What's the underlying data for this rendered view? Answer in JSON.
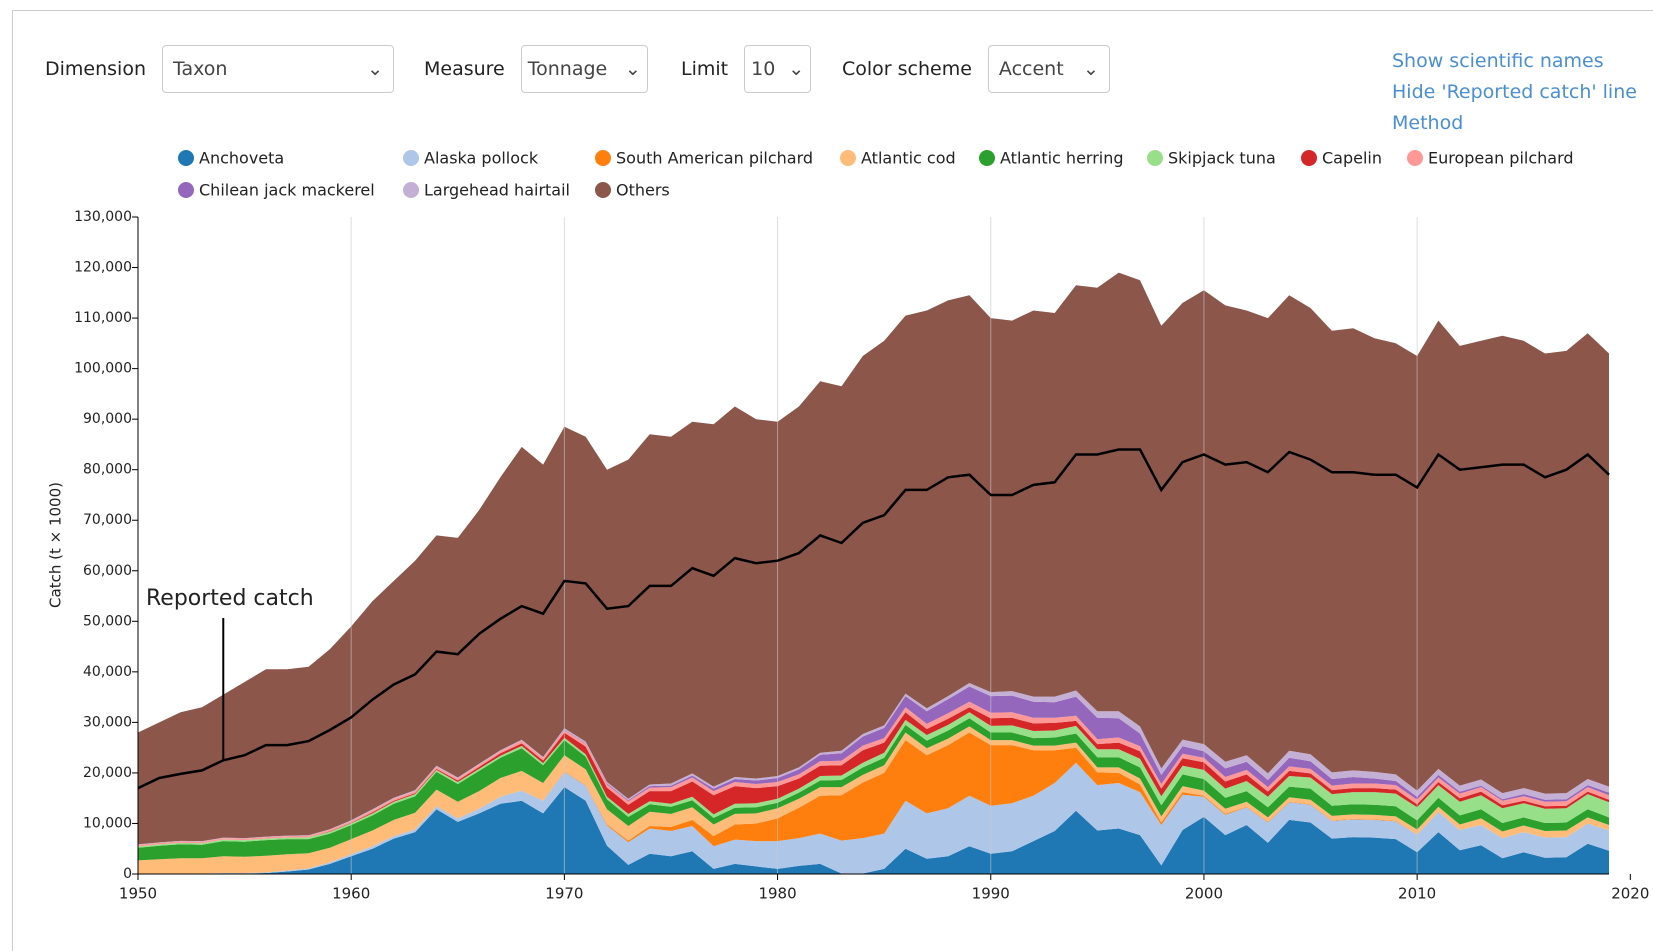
{
  "controls": [
    {
      "label": "Dimension",
      "value": "Taxon"
    },
    {
      "label": "Measure",
      "value": "Tonnage"
    },
    {
      "label": "Limit",
      "value": "10"
    },
    {
      "label": "Color scheme",
      "value": "Accent"
    }
  ],
  "links": [
    "Show scientific names",
    "Hide 'Reported catch' line",
    "Method"
  ],
  "chart_data": {
    "type": "stacked-area",
    "y_label": "Catch (t × 1000)",
    "x": [
      1950,
      1951,
      1952,
      1953,
      1954,
      1955,
      1956,
      1957,
      1958,
      1959,
      1960,
      1961,
      1962,
      1963,
      1964,
      1965,
      1966,
      1967,
      1968,
      1969,
      1970,
      1971,
      1972,
      1973,
      1974,
      1975,
      1976,
      1977,
      1978,
      1979,
      1980,
      1981,
      1982,
      1983,
      1984,
      1985,
      1986,
      1987,
      1988,
      1989,
      1990,
      1991,
      1992,
      1993,
      1994,
      1995,
      1996,
      1997,
      1998,
      1999,
      2000,
      2001,
      2002,
      2003,
      2004,
      2005,
      2006,
      2007,
      2008,
      2009,
      2010,
      2011,
      2012,
      2013,
      2014,
      2015,
      2016,
      2017,
      2018,
      2019
    ],
    "xlim": [
      1950,
      2019
    ],
    "xticks": [
      1950,
      1960,
      1970,
      1980,
      1990,
      2000,
      2010,
      2020
    ],
    "ylim": [
      0,
      130000
    ],
    "yticks": [
      0,
      {
        "value": 10000,
        "label": "10,000"
      },
      {
        "value": 20000,
        "label": "20,000"
      },
      {
        "value": 30000,
        "label": "30,000"
      },
      {
        "value": 40000,
        "label": "40,000"
      },
      {
        "value": 50000,
        "label": "50,000"
      },
      {
        "value": 60000,
        "label": "60,000"
      },
      {
        "value": 70000,
        "label": "70,000"
      },
      {
        "value": 80000,
        "label": "80,000"
      },
      {
        "value": 90000,
        "label": "90,000"
      },
      {
        "value": 100000,
        "label": "100,000"
      },
      {
        "value": 110000,
        "label": "110,000"
      },
      {
        "value": 120000,
        "label": "120,000"
      },
      {
        "value": 130000,
        "label": "130,000"
      }
    ],
    "grid": "x",
    "stacked": true,
    "series": [
      {
        "name": "Anchoveta",
        "color": "#1f77b4",
        "values": [
          0,
          0,
          0,
          0,
          100,
          100,
          200,
          500,
          900,
          2000,
          3500,
          5000,
          7000,
          8300,
          12800,
          10300,
          12000,
          13900,
          14500,
          12000,
          17200,
          14500,
          5600,
          1800,
          4000,
          3500,
          4500,
          1000,
          2000,
          1500,
          1000,
          1600,
          2000,
          100,
          100,
          1000,
          5000,
          3000,
          3500,
          5500,
          4000,
          4500,
          6500,
          8500,
          12500,
          8600,
          9000,
          7700,
          1700,
          8700,
          11300,
          7700,
          9700,
          6200,
          10700,
          10200,
          7000,
          7300,
          7200,
          6900,
          4300,
          8300,
          4700,
          5700,
          3100,
          4300,
          3200,
          3300,
          6000,
          4600
        ]
      },
      {
        "name": "Alaska pollock",
        "color": "#aec7e8",
        "values": [
          100,
          100,
          100,
          100,
          100,
          100,
          100,
          200,
          200,
          300,
          400,
          500,
          500,
          500,
          600,
          700,
          900,
          1400,
          2000,
          2500,
          3000,
          3000,
          4000,
          4500,
          5000,
          5000,
          5000,
          4500,
          4800,
          5000,
          5500,
          5500,
          6000,
          6500,
          7000,
          7000,
          9500,
          9000,
          9500,
          10000,
          9500,
          9500,
          9000,
          9500,
          9500,
          9000,
          9000,
          8500,
          8000,
          7000,
          4000,
          4000,
          3500,
          4000,
          3500,
          3500,
          3500,
          3500,
          3500,
          3500,
          3500,
          4000,
          4000,
          4000,
          4000,
          4000,
          4000,
          4000,
          4000,
          4000
        ]
      },
      {
        "name": "South American pilchard",
        "color": "#ff7f0e",
        "values": [
          0,
          0,
          0,
          0,
          0,
          0,
          0,
          0,
          0,
          0,
          0,
          0,
          0,
          0,
          0,
          0,
          0,
          0,
          0,
          0,
          100,
          100,
          200,
          300,
          500,
          800,
          1200,
          2000,
          3000,
          3500,
          4500,
          6000,
          7500,
          9000,
          11000,
          12000,
          12000,
          11500,
          12500,
          12500,
          12000,
          11500,
          9000,
          6500,
          3000,
          2500,
          2000,
          1500,
          500,
          500,
          200,
          200,
          100,
          100,
          100,
          100,
          100,
          100,
          100,
          100,
          0,
          0,
          0,
          0,
          0,
          0,
          0,
          0,
          0,
          0
        ]
      },
      {
        "name": "Atlantic cod",
        "color": "#ffbb78",
        "values": [
          2600,
          2800,
          3000,
          3000,
          3300,
          3200,
          3300,
          3200,
          3000,
          2900,
          3000,
          3100,
          3200,
          3300,
          3300,
          3300,
          3500,
          3700,
          3900,
          3500,
          3200,
          3100,
          3000,
          2900,
          2800,
          2600,
          2500,
          2300,
          2100,
          2000,
          2000,
          1800,
          1700,
          1600,
          1500,
          1500,
          1500,
          1400,
          1300,
          1200,
          1000,
          1000,
          900,
          900,
          1000,
          1000,
          1100,
          1200,
          1200,
          1200,
          1000,
          1000,
          1000,
          900,
          900,
          900,
          900,
          900,
          900,
          900,
          1000,
          1000,
          1100,
          1300,
          1300,
          1300,
          1300,
          1300,
          1200,
          1100
        ]
      },
      {
        "name": "Atlantic herring",
        "color": "#2ca02c",
        "values": [
          2500,
          2700,
          2800,
          2700,
          3000,
          3000,
          3100,
          3000,
          2800,
          2800,
          2800,
          3000,
          3200,
          3300,
          3500,
          3500,
          4000,
          4000,
          4500,
          3500,
          3000,
          2500,
          2000,
          1800,
          1500,
          1400,
          1400,
          1300,
          1200,
          1200,
          1100,
          1200,
          1300,
          1400,
          1500,
          1500,
          1500,
          1500,
          1600,
          1600,
          1500,
          1500,
          1500,
          1600,
          1800,
          2000,
          2000,
          2200,
          2200,
          2300,
          2300,
          2200,
          2100,
          2000,
          2100,
          2200,
          2000,
          2000,
          2000,
          2000,
          1800,
          1800,
          1800,
          1800,
          1700,
          1600,
          1600,
          1600,
          1600,
          1500
        ]
      },
      {
        "name": "Skipjack tuna",
        "color": "#98df8a",
        "values": [
          250,
          250,
          250,
          300,
          300,
          300,
          300,
          300,
          350,
          350,
          350,
          400,
          400,
          400,
          400,
          400,
          400,
          400,
          450,
          450,
          450,
          500,
          500,
          600,
          600,
          600,
          700,
          700,
          800,
          800,
          800,
          800,
          900,
          900,
          900,
          1000,
          1000,
          1100,
          1100,
          1200,
          1300,
          1400,
          1400,
          1400,
          1500,
          1600,
          1600,
          1700,
          1800,
          1700,
          1800,
          1800,
          2000,
          2100,
          2100,
          2200,
          2300,
          2400,
          2500,
          2500,
          2600,
          2500,
          2700,
          2800,
          2900,
          2800,
          2800,
          2800,
          3000,
          3000
        ]
      },
      {
        "name": "Capelin",
        "color": "#d62728",
        "values": [
          0,
          0,
          0,
          0,
          0,
          0,
          0,
          0,
          0,
          100,
          100,
          200,
          200,
          200,
          200,
          300,
          400,
          500,
          500,
          500,
          1000,
          1500,
          1800,
          1800,
          2000,
          2500,
          3000,
          3800,
          3500,
          3000,
          2500,
          2000,
          2000,
          2000,
          2500,
          2000,
          1500,
          1200,
          1200,
          1000,
          1500,
          1500,
          1500,
          1500,
          1000,
          1000,
          1300,
          1500,
          1500,
          1500,
          1500,
          1400,
          1300,
          1000,
          1000,
          800,
          800,
          800,
          800,
          800,
          600,
          600,
          700,
          700,
          600,
          500,
          500,
          500,
          500,
          500
        ]
      },
      {
        "name": "European pilchard",
        "color": "#ff9896",
        "values": [
          300,
          300,
          300,
          300,
          300,
          300,
          300,
          300,
          300,
          300,
          300,
          400,
          400,
          400,
          400,
          400,
          400,
          400,
          500,
          500,
          500,
          600,
          600,
          700,
          700,
          800,
          800,
          800,
          800,
          800,
          800,
          800,
          900,
          900,
          900,
          900,
          1000,
          1000,
          1100,
          1100,
          1100,
          1100,
          1100,
          1000,
          1000,
          1000,
          1000,
          1000,
          900,
          900,
          900,
          900,
          900,
          900,
          900,
          900,
          900,
          900,
          900,
          900,
          900,
          900,
          900,
          900,
          900,
          900,
          900,
          900,
          900,
          900
        ]
      },
      {
        "name": "Chilean jack mackerel",
        "color": "#9467bd",
        "values": [
          0,
          0,
          0,
          0,
          0,
          0,
          0,
          0,
          0,
          0,
          0,
          0,
          0,
          0,
          0,
          0,
          0,
          0,
          0,
          0,
          100,
          100,
          200,
          200,
          300,
          300,
          400,
          500,
          600,
          700,
          800,
          1000,
          1300,
          1500,
          1800,
          2000,
          2200,
          2500,
          2800,
          3000,
          3300,
          3300,
          3200,
          3100,
          3800,
          4200,
          3800,
          2500,
          1800,
          1500,
          1300,
          1700,
          1600,
          1400,
          1700,
          1500,
          1300,
          1300,
          1000,
          800,
          600,
          500,
          400,
          300,
          300,
          400,
          400,
          400,
          400,
          500
        ]
      },
      {
        "name": "Largehead hairtail",
        "color": "#c5b0d5",
        "values": [
          100,
          100,
          100,
          100,
          100,
          100,
          100,
          100,
          100,
          100,
          200,
          200,
          200,
          200,
          200,
          200,
          200,
          200,
          200,
          200,
          300,
          300,
          300,
          300,
          300,
          400,
          400,
          400,
          400,
          400,
          400,
          400,
          400,
          500,
          500,
          500,
          500,
          600,
          600,
          700,
          800,
          900,
          1000,
          1100,
          1200,
          1300,
          1400,
          1400,
          1300,
          1300,
          1400,
          1300,
          1300,
          1300,
          1400,
          1400,
          1300,
          1300,
          1300,
          1300,
          1200,
          1200,
          1200,
          1200,
          1200,
          1200,
          1200,
          1200,
          1200,
          1200
        ]
      },
      {
        "name": "Others",
        "color": "#8c564b",
        "values": [
          22150,
          23750,
          25450,
          26500,
          28300,
          30900,
          33100,
          32900,
          33350,
          35650,
          38350,
          41200,
          42900,
          45400,
          45600,
          47400,
          50200,
          54000,
          57950,
          57850,
          59650,
          60300,
          61800,
          67100,
          69300,
          68600,
          69600,
          71700,
          73300,
          71100,
          70100,
          71400,
          73500,
          72100,
          74800,
          76100,
          74800,
          78700,
          78300,
          76700,
          74000,
          73300,
          76400,
          75900,
          80200,
          83800,
          86800,
          88300,
          87600,
          86400,
          89800,
          90300,
          88000,
          90100,
          90100,
          88300,
          87400,
          87500,
          85800,
          85300,
          86000,
          88700,
          87000,
          86800,
          90500,
          88500,
          87100,
          87500,
          88200,
          85700
        ]
      }
    ],
    "reported_catch": {
      "label": "Reported catch",
      "color": "#000000",
      "values": [
        17000,
        19000,
        19800,
        20500,
        22500,
        23500,
        25500,
        25500,
        26300,
        28500,
        31000,
        34500,
        37500,
        39500,
        44000,
        43500,
        47500,
        50500,
        53000,
        51500,
        58000,
        57500,
        52500,
        53000,
        57000,
        57000,
        60500,
        59000,
        62500,
        61500,
        62000,
        63500,
        67000,
        65500,
        69500,
        71000,
        76000,
        76000,
        78500,
        79000,
        75000,
        75000,
        77000,
        77500,
        83000,
        83000,
        84000,
        84000,
        76000,
        81500,
        83000,
        81000,
        81500,
        79500,
        83500,
        82000,
        79500,
        79500,
        79000,
        79000,
        76500,
        83000,
        80000,
        80500,
        81000,
        81000,
        78500,
        80000,
        83000,
        79000
      ]
    }
  }
}
